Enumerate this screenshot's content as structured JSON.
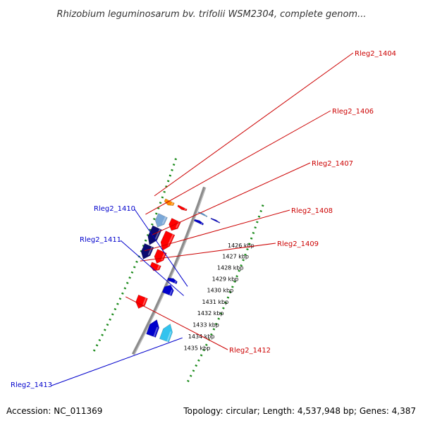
{
  "title": "Rhizobium leguminosarum bv. trifolii WSM2304, complete genom...",
  "footer": {
    "accession": "Accession: NC_011369",
    "topology": "Topology: circular; Length: 4,537,948 bp; Genes: 4,387"
  },
  "colors": {
    "backbone": "#8c8c8c",
    "tick_dots": "#1a8a1a",
    "label_forward": "#cc0000",
    "label_reverse": "#0000cc"
  },
  "scale": {
    "start_kbp": 1425.5,
    "end_kbp": 1435.7,
    "ticks": [
      "1426 kbp",
      "1427 kbp",
      "1428 kbp",
      "1429 kbp",
      "1430 kbp",
      "1431 kbp",
      "1432 kbp",
      "1433 kbp",
      "1434 kbp",
      "1435 kbp"
    ]
  },
  "genes": [
    {
      "id": "g_top_blue",
      "start": 1425.55,
      "end": 1425.65,
      "lane": "inner",
      "color": "#4a90d0"
    },
    {
      "id": "g_top_blue2",
      "start": 1425.55,
      "end": 1425.65,
      "lane": "inner2",
      "color": "#0000cc"
    },
    {
      "id": "g1403",
      "start": 1425.8,
      "end": 1426.0,
      "lane": "outer",
      "color": "#ff0000"
    },
    {
      "id": "Rleg2_1404",
      "start": 1425.8,
      "end": 1426.15,
      "lane": "outer2",
      "color": "#ff8c00"
    },
    {
      "id": "g_blue_1426",
      "start": 1426.15,
      "end": 1426.35,
      "lane": "inner",
      "color": "#0000cc"
    },
    {
      "id": "Rleg2_1405",
      "start": 1426.9,
      "end": 1427.75,
      "lane": "outer",
      "color": "#ff0000"
    },
    {
      "id": "Rleg2_1406",
      "start": 1427.0,
      "end": 1427.95,
      "lane": "outer2",
      "color": "#7aa8d8"
    },
    {
      "id": "Rleg2_1407",
      "start": 1427.95,
      "end": 1429.4,
      "lane": "outer",
      "color": "#ff0000"
    },
    {
      "id": "Rleg2_1407b",
      "start": 1428.0,
      "end": 1429.4,
      "lane": "outer2",
      "color": "#0a0a70"
    },
    {
      "id": "Rleg2_1408",
      "start": 1429.45,
      "end": 1430.45,
      "lane": "outer",
      "color": "#ff0000"
    },
    {
      "id": "Rleg2_1408b",
      "start": 1429.45,
      "end": 1430.55,
      "lane": "outer2",
      "color": "#0a0a70"
    },
    {
      "id": "Rleg2_1409",
      "start": 1430.5,
      "end": 1431.05,
      "lane": "outer",
      "color": "#ff0000"
    },
    {
      "id": "Rleg2_1410",
      "start": 1431.0,
      "end": 1431.3,
      "lane": "inner",
      "color": "#0000cc"
    },
    {
      "id": "Rleg2_1411",
      "start": 1431.55,
      "end": 1432.3,
      "lane": "inner",
      "color": "#0000cc"
    },
    {
      "id": "Rleg2_1412",
      "start": 1433.15,
      "end": 1434.1,
      "lane": "outer",
      "color": "#ff0000"
    },
    {
      "id": "Rleg2_1413",
      "start": 1434.35,
      "end": 1435.7,
      "lane": "inner2",
      "color": "#33c3ee"
    },
    {
      "id": "g_blue_1434",
      "start": 1434.4,
      "end": 1435.7,
      "lane": "inner",
      "color": "#0000cc"
    }
  ],
  "labels": [
    {
      "text": "Rleg2_1404",
      "gene": "Rleg2_1404",
      "side": "right"
    },
    {
      "text": "Rleg2_1406",
      "gene": "Rleg2_1406",
      "side": "right"
    },
    {
      "text": "Rleg2_1407",
      "gene": "Rleg2_1407",
      "side": "right"
    },
    {
      "text": "Rleg2_1408",
      "gene": "Rleg2_1408",
      "side": "right"
    },
    {
      "text": "Rleg2_1409",
      "gene": "Rleg2_1409",
      "side": "right"
    },
    {
      "text": "Rleg2_1410",
      "gene": "Rleg2_1410",
      "side": "left"
    },
    {
      "text": "Rleg2_1411",
      "gene": "Rleg2_1411",
      "side": "left"
    },
    {
      "text": "Rleg2_1412",
      "gene": "Rleg2_1412",
      "side": "right"
    },
    {
      "text": "Rleg2_1413",
      "gene": "Rleg2_1413",
      "side": "left"
    }
  ]
}
